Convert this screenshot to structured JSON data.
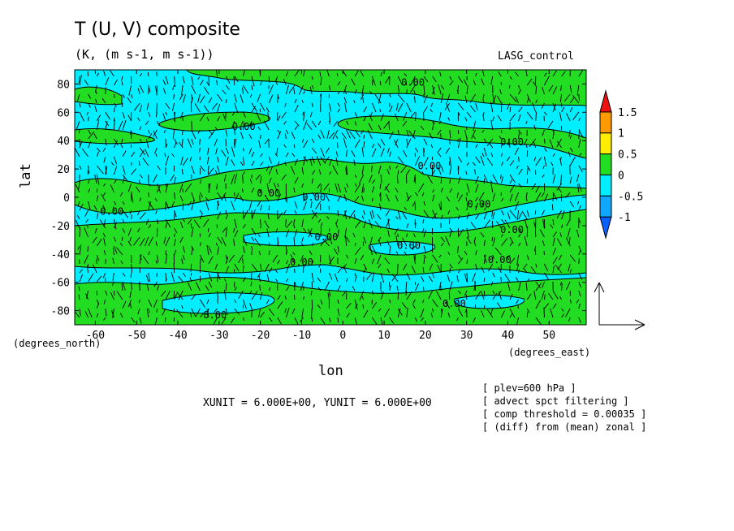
{
  "title": "T (U, V) composite",
  "subtitle": "(K, (m s-1, m s-1))",
  "run_label": "LASG_control",
  "vector_units_note": "XUNIT = 6.000E+00, YUNIT = 6.000E+00",
  "params": [
    "[ plev=600 hPa ]",
    "[ advect spct filtering ]",
    "[ comp threshold = 0.00035 ]",
    "[ (diff) from (mean) zonal ]"
  ],
  "colors": {
    "positive_fill": "#22dd22",
    "negative_fill": "#00eeff",
    "colorbar": [
      "#0a5fff",
      "#10a8ff",
      "#00eeff",
      "#22dd22",
      "#ffee00",
      "#ff9900",
      "#ee1111"
    ]
  },
  "chart_data": {
    "type": "contour_vector",
    "xlabel": "lon",
    "ylabel": "lat",
    "x_unit_label": "(degrees_east)",
    "y_unit_label": "(degrees_north)",
    "xlim": [
      -65,
      59
    ],
    "ylim": [
      -90,
      90
    ],
    "xticks": [
      -60,
      -50,
      -40,
      -30,
      -20,
      -10,
      0,
      10,
      20,
      30,
      40,
      50
    ],
    "yticks": [
      80,
      60,
      40,
      20,
      0,
      -20,
      -40,
      -60,
      -80
    ],
    "contour_levels": [
      0.0
    ],
    "contour_labels": [
      {
        "text": "0.00",
        "lon": 17,
        "lat": 81
      },
      {
        "text": "0.00",
        "lon": -24,
        "lat": 50
      },
      {
        "text": "0.00",
        "lon": 41,
        "lat": 39
      },
      {
        "text": "0.00",
        "lon": 21,
        "lat": 22
      },
      {
        "text": "0.00",
        "lon": -18,
        "lat": 3
      },
      {
        "text": "0.00",
        "lon": -7,
        "lat": 0
      },
      {
        "text": "0.00",
        "lon": 33,
        "lat": -5
      },
      {
        "text": "0.00",
        "lon": -56,
        "lat": -10
      },
      {
        "text": "0.00",
        "lon": 41,
        "lat": -23
      },
      {
        "text": "0.00",
        "lon": -4,
        "lat": -28
      },
      {
        "text": "0.00",
        "lon": 16,
        "lat": -34
      },
      {
        "text": "0.00",
        "lon": 38,
        "lat": -44
      },
      {
        "text": "0.00",
        "lon": -10,
        "lat": -46
      },
      {
        "text": "0.00",
        "lon": 27,
        "lat": -75
      },
      {
        "text": "0.00",
        "lon": -31,
        "lat": -83
      }
    ],
    "colorbar": {
      "levels": [
        "1.5",
        "1",
        "0.5",
        "0",
        "-0.5",
        "-1"
      ],
      "extend": "both"
    }
  }
}
